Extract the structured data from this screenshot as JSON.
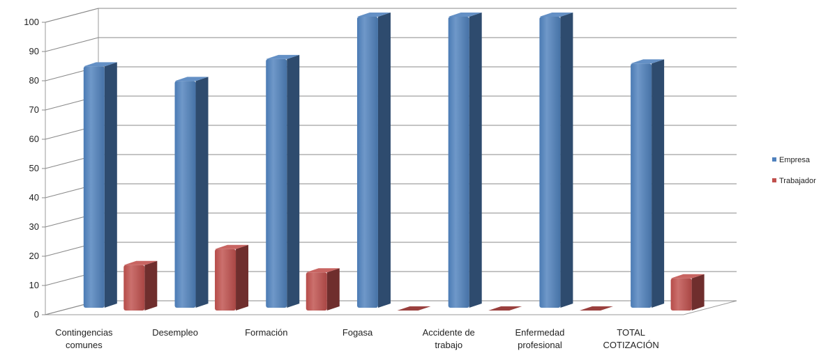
{
  "chart_data": {
    "type": "bar",
    "categories": [
      [
        "Contingencias",
        "comunes"
      ],
      [
        "Desempleo"
      ],
      [
        "Formación"
      ],
      [
        "Fogasa"
      ],
      [
        "Accidente de",
        "trabajo"
      ],
      [
        "Enfermedad",
        "profesional"
      ],
      [
        "TOTAL",
        "COTIZACIÓN"
      ]
    ],
    "series": [
      {
        "name": "Empresa",
        "color": "#4F81BD",
        "values": [
          83,
          78,
          85.5,
          100,
          100,
          100,
          84
        ]
      },
      {
        "name": "Trabajador",
        "color": "#C0504D",
        "values": [
          16,
          21.5,
          13.5,
          0,
          0,
          0,
          11.5
        ]
      }
    ],
    "ylim": [
      0,
      100
    ],
    "yticks": [
      "0",
      "10",
      "20",
      "30",
      "40",
      "50",
      "60",
      "70",
      "80",
      "90",
      "100"
    ],
    "grid": true,
    "legend_position": "right",
    "style": "3d-clustered-column"
  }
}
